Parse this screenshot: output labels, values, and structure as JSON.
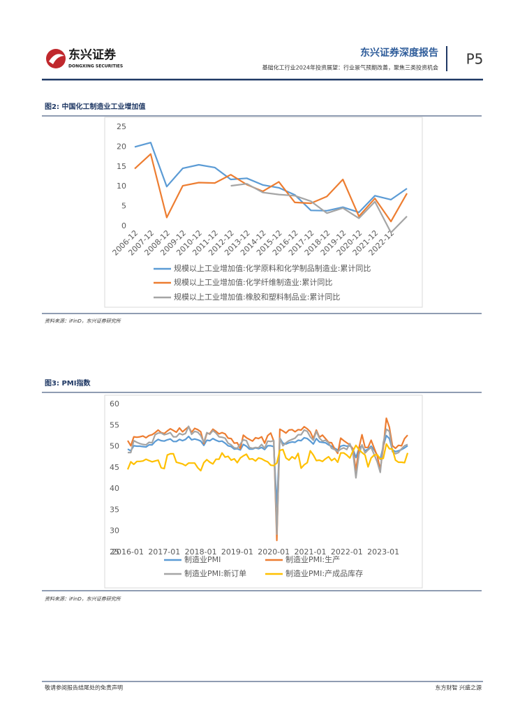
{
  "header": {
    "logo_cn": "东兴证券",
    "logo_en": "DONGXING SECURITIES",
    "report_type": "东兴证券深度报告",
    "subtitle": "基础化工行业2024年投资展望：行业景气预期改善，聚焦三类投资机会",
    "page": "P5"
  },
  "figures": [
    {
      "title": "图2: 中国化工制造业工业增加值",
      "source": "资料来源：iFinD，东兴证券研究所"
    },
    {
      "title": "图3: PMI指数",
      "source": "资料来源：iFinD，东兴证券研究所"
    }
  ],
  "chart_data": [
    {
      "type": "line",
      "categories": [
        "2006-12",
        "2007-12",
        "2008-12",
        "2009-12",
        "2010-12",
        "2011-12",
        "2012-12",
        "2013-12",
        "2014-12",
        "2015-12",
        "2016-12",
        "2017-12",
        "2018-12",
        "2019-12",
        "2020-12",
        "2021-12",
        "2022-12",
        null
      ],
      "series": [
        {
          "name": "规模以上工业增加值:化学原料和化学制品制造业:累计同比",
          "color": "#5b9bd5",
          "values": [
            20.0,
            21.1,
            10.0,
            14.6,
            15.5,
            14.8,
            11.8,
            12.1,
            10.4,
            9.7,
            7.9,
            4.0,
            3.9,
            4.8,
            3.5,
            7.7,
            6.7,
            9.5
          ]
        },
        {
          "name": "规模以上工业增加值:化学纤维制造业:累计同比",
          "color": "#ed7d31",
          "values": [
            14.5,
            18.2,
            2.2,
            10.2,
            11.0,
            10.9,
            13.0,
            10.5,
            8.8,
            11.2,
            6.0,
            5.8,
            7.5,
            11.8,
            2.5,
            7.0,
            1.2,
            8.3
          ]
        },
        {
          "name": "规模以上工业增加值:橡胶和塑料制品业:累计同比",
          "color": "#a5a5a5",
          "values": [
            null,
            null,
            null,
            null,
            null,
            null,
            10.2,
            10.7,
            8.5,
            8.0,
            7.7,
            6.3,
            3.3,
            4.6,
            2.0,
            6.2,
            -1.6,
            2.5
          ]
        }
      ],
      "ylim": [
        0,
        25
      ],
      "yticks": [
        0,
        5,
        10,
        15,
        20,
        25
      ],
      "grid": false
    },
    {
      "type": "line",
      "categories": [
        "2016-01",
        null,
        null,
        null,
        null,
        null,
        null,
        null,
        null,
        null,
        null,
        null,
        "2017-01",
        null,
        null,
        null,
        null,
        null,
        null,
        null,
        null,
        null,
        null,
        null,
        "2018-01",
        null,
        null,
        null,
        null,
        null,
        null,
        null,
        null,
        null,
        null,
        null,
        "2019-01",
        null,
        null,
        null,
        null,
        null,
        null,
        null,
        null,
        null,
        null,
        null,
        "2020-01",
        null,
        null,
        null,
        null,
        null,
        null,
        null,
        null,
        null,
        null,
        null,
        "2021-01",
        null,
        null,
        null,
        null,
        null,
        null,
        null,
        null,
        null,
        null,
        null,
        "2022-01",
        null,
        null,
        null,
        null,
        null,
        null,
        null,
        null,
        null,
        null,
        null,
        "2023-01",
        null,
        null,
        null,
        null,
        null,
        null,
        null,
        null
      ],
      "series": [
        {
          "name": "制造业PMI",
          "color": "#5b9bd5",
          "values": [
            49.4,
            49.0,
            50.2,
            50.1,
            50.1,
            50.0,
            49.9,
            50.4,
            50.4,
            51.2,
            51.7,
            51.4,
            51.3,
            51.6,
            51.8,
            51.2,
            51.2,
            51.7,
            51.4,
            51.7,
            52.4,
            51.6,
            51.8,
            51.6,
            51.3,
            50.3,
            51.5,
            51.4,
            51.9,
            51.5,
            51.2,
            51.3,
            50.8,
            50.2,
            50.0,
            49.4,
            49.5,
            49.2,
            50.5,
            50.1,
            49.4,
            49.4,
            49.7,
            49.5,
            49.8,
            49.3,
            50.2,
            50.2,
            50.0,
            35.7,
            52.0,
            50.8,
            50.6,
            50.9,
            51.1,
            51.0,
            51.5,
            51.4,
            52.1,
            51.9,
            51.3,
            50.6,
            51.9,
            51.1,
            51.0,
            50.9,
            50.4,
            50.1,
            49.6,
            49.2,
            50.1,
            50.3,
            50.1,
            50.2,
            49.5,
            47.4,
            49.6,
            50.2,
            49.0,
            49.4,
            50.1,
            49.2,
            48.0,
            47.0,
            50.1,
            52.6,
            51.9,
            49.2,
            48.8,
            49.0,
            49.3,
            49.7,
            50.2
          ]
        },
        {
          "name": "制造业PMI:生产",
          "color": "#ed7d31",
          "values": [
            51.4,
            50.2,
            52.3,
            52.2,
            52.3,
            52.5,
            52.1,
            52.6,
            52.8,
            53.3,
            53.9,
            53.3,
            53.1,
            53.7,
            54.2,
            53.8,
            53.4,
            54.4,
            53.5,
            54.1,
            54.7,
            53.4,
            54.3,
            54.0,
            53.5,
            50.7,
            53.1,
            53.1,
            54.1,
            53.6,
            53.0,
            53.3,
            53.0,
            52.0,
            51.9,
            50.8,
            50.9,
            49.5,
            52.7,
            52.1,
            51.7,
            51.3,
            52.1,
            51.9,
            52.3,
            50.8,
            52.6,
            53.2,
            51.3,
            27.8,
            54.1,
            53.7,
            53.2,
            53.9,
            54.0,
            53.5,
            54.0,
            53.9,
            54.7,
            54.2,
            53.5,
            51.9,
            53.9,
            52.2,
            52.7,
            51.9,
            51.0,
            50.9,
            49.5,
            48.4,
            52.0,
            51.4,
            50.9,
            50.4,
            49.5,
            44.4,
            49.7,
            52.8,
            49.8,
            49.8,
            51.5,
            49.6,
            47.8,
            44.6,
            49.8,
            56.7,
            54.6,
            50.2,
            49.6,
            50.3,
            50.2,
            51.9,
            52.7
          ]
        },
        {
          "name": "制造业PMI:新订单",
          "color": "#a5a5a5",
          "values": [
            48.6,
            48.6,
            51.4,
            51.0,
            50.7,
            50.5,
            50.4,
            51.0,
            50.9,
            52.8,
            53.2,
            53.2,
            52.8,
            53.0,
            53.3,
            52.3,
            52.3,
            53.1,
            52.8,
            53.1,
            54.8,
            52.9,
            53.6,
            53.4,
            52.6,
            51.0,
            53.3,
            52.9,
            53.8,
            53.2,
            52.3,
            52.2,
            52.0,
            50.8,
            50.4,
            49.7,
            49.6,
            50.6,
            51.6,
            51.4,
            49.8,
            49.6,
            49.8,
            49.7,
            50.5,
            49.6,
            51.3,
            51.2,
            51.4,
            29.3,
            52.0,
            50.2,
            50.9,
            51.4,
            51.7,
            52.0,
            52.8,
            52.8,
            53.9,
            53.6,
            52.3,
            51.5,
            53.6,
            52.0,
            51.3,
            51.5,
            50.9,
            49.6,
            49.3,
            48.8,
            49.4,
            49.7,
            49.3,
            50.7,
            48.8,
            42.6,
            48.2,
            50.4,
            48.5,
            49.2,
            49.8,
            48.1,
            46.4,
            43.9,
            50.9,
            54.1,
            53.6,
            48.8,
            48.3,
            48.6,
            49.5,
            50.2,
            50.5
          ]
        },
        {
          "name": "制造业PMI:产成品库存",
          "color": "#ffc000",
          "values": [
            44.6,
            46.4,
            45.8,
            46.5,
            46.5,
            46.6,
            47.0,
            46.7,
            46.4,
            46.6,
            46.8,
            45.0,
            44.8,
            48.0,
            48.3,
            48.3,
            46.3,
            46.1,
            45.9,
            45.5,
            46.1,
            46.1,
            46.1,
            45.0,
            44.3,
            46.2,
            46.9,
            46.3,
            45.9,
            47.0,
            47.0,
            48.5,
            47.5,
            47.7,
            46.8,
            47.1,
            46.2,
            47.3,
            47.8,
            48.2,
            47.0,
            47.1,
            46.6,
            47.3,
            47.1,
            46.7,
            46.4,
            45.6,
            45.5,
            46.1,
            49.1,
            49.3,
            47.3,
            46.8,
            47.6,
            47.1,
            48.4,
            44.9,
            45.7,
            46.2,
            49.0,
            48.0,
            46.7,
            46.8,
            46.5,
            47.1,
            47.6,
            46.7,
            47.2,
            46.3,
            48.5,
            48.5,
            48.0,
            47.3,
            48.9,
            50.3,
            49.3,
            48.6,
            48.0,
            45.2,
            47.3,
            48.0,
            48.1,
            47.1,
            47.2,
            50.6,
            49.5,
            49.4,
            46.8,
            46.3,
            46.3,
            46.2,
            48.5
          ]
        }
      ],
      "ylim": [
        25,
        60
      ],
      "yticks": [
        25,
        30,
        35,
        40,
        45,
        50,
        55,
        60
      ],
      "grid": false
    }
  ],
  "footer": {
    "disclaimer": "敬请参阅报告结尾处的免责声明",
    "slogan": "东方财智 兴盛之源"
  }
}
